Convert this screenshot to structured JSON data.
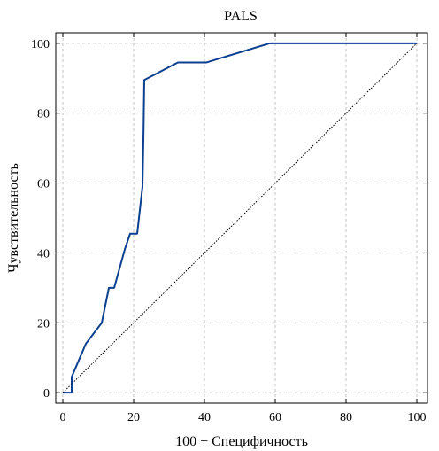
{
  "chart_data": {
    "type": "line",
    "title": "PALS",
    "xlabel": "100 − Специфичность",
    "ylabel": "Чувствительность",
    "xlim": [
      -2,
      103
    ],
    "ylim": [
      -3,
      103
    ],
    "xticks": [
      0,
      20,
      40,
      60,
      80,
      100
    ],
    "yticks": [
      0,
      20,
      40,
      60,
      80,
      100
    ],
    "grid": true,
    "series": [
      {
        "color": "#0b3f8f",
        "style": "solid",
        "x": [
          0,
          1.5,
          2.5,
          2.5,
          6.5,
          11,
          13,
          14.5,
          17.5,
          19,
          21,
          22.5,
          22.8,
          23,
          32.5,
          40.5,
          58.5,
          100
        ],
        "y": [
          0,
          0,
          0,
          4.5,
          14,
          20,
          30,
          30,
          41,
          45.5,
          45.5,
          59,
          75,
          89.5,
          94.5,
          94.5,
          100,
          100
        ]
      },
      {
        "color": "#000000",
        "style": "dotted",
        "x": [
          0,
          100
        ],
        "y": [
          0,
          100
        ]
      }
    ]
  }
}
